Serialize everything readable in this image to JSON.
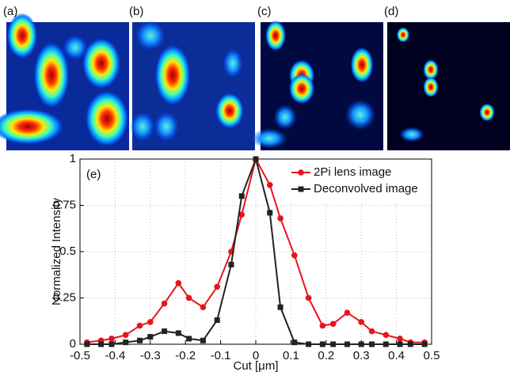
{
  "panels": [
    {
      "label": "(a)"
    },
    {
      "label": "(b)"
    },
    {
      "label": "(c)"
    },
    {
      "label": "(d)"
    }
  ],
  "chart_data": {
    "type": "line",
    "annotation": "(e)",
    "x_label": "Cut [μm]",
    "y_label": "Normalized Intensity",
    "x": [
      -0.48,
      -0.44,
      -0.41,
      -0.37,
      -0.33,
      -0.3,
      -0.26,
      -0.22,
      -0.19,
      -0.15,
      -0.11,
      -0.07,
      -0.04,
      0,
      0.04,
      0.07,
      0.11,
      0.15,
      0.19,
      0.22,
      0.26,
      0.3,
      0.33,
      0.37,
      0.41,
      0.44,
      0.48
    ],
    "series": [
      {
        "name": "2Pi lens image",
        "color": "#e8141c",
        "marker": "circle",
        "values": [
          0.01,
          0.02,
          0.03,
          0.05,
          0.1,
          0.12,
          0.22,
          0.33,
          0.25,
          0.2,
          0.31,
          0.5,
          0.7,
          1,
          0.86,
          0.68,
          0.48,
          0.25,
          0.1,
          0.11,
          0.17,
          0.12,
          0.07,
          0.05,
          0.03,
          0.01,
          0.01
        ]
      },
      {
        "name": "Deconvolved image",
        "color": "#222222",
        "marker": "square",
        "values": [
          0,
          0,
          0,
          0.01,
          0.02,
          0.04,
          0.07,
          0.06,
          0.03,
          0.02,
          0.13,
          0.43,
          0.8,
          1,
          0.71,
          0.2,
          0.01,
          0,
          0,
          0,
          0,
          0,
          0,
          0,
          0,
          0,
          0
        ]
      }
    ],
    "xlim": [
      -0.5,
      0.5
    ],
    "xticks": [
      -0.5,
      -0.4,
      -0.3,
      -0.2,
      -0.1,
      0,
      0.1,
      0.2,
      0.3,
      0.4,
      0.5
    ],
    "ylim": [
      0,
      1
    ],
    "yticks": [
      0,
      0.25,
      0.5,
      0.75,
      1
    ],
    "grid": true,
    "legend": "top-right"
  }
}
